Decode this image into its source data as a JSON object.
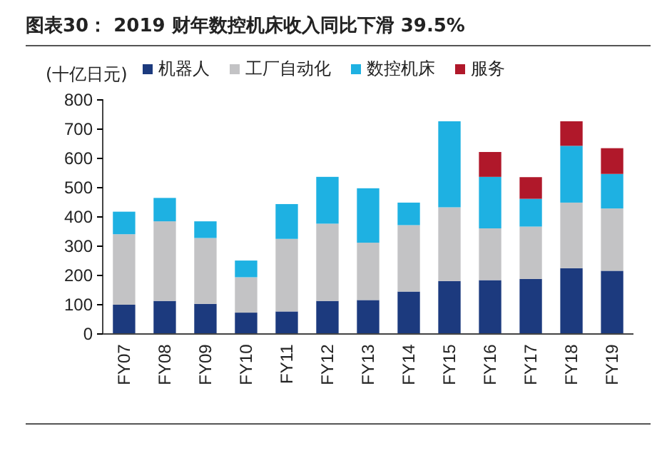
{
  "chart_data": {
    "type": "bar",
    "stacked": true,
    "title": "图表30：  2019 财年数控机床收入同比下滑 39.5%",
    "ylabel": "(十亿日元)",
    "categories": [
      "FY07",
      "FY08",
      "FY09",
      "FY10",
      "FY11",
      "FY12",
      "FY13",
      "FY14",
      "FY15",
      "FY16",
      "FY17",
      "FY18",
      "FY19"
    ],
    "series": [
      {
        "name": "机器人",
        "color": "#1c3a7e",
        "values": [
          100,
          113,
          103,
          73,
          77,
          113,
          116,
          145,
          181,
          184,
          188,
          225,
          216
        ]
      },
      {
        "name": "工厂自动化",
        "color": "#c3c3c5",
        "values": [
          241,
          272,
          225,
          121,
          248,
          264,
          196,
          227,
          252,
          177,
          179,
          224,
          213
        ]
      },
      {
        "name": "数控机床",
        "color": "#1eb1e2",
        "values": [
          77,
          80,
          57,
          57,
          119,
          160,
          186,
          77,
          294,
          176,
          95,
          194,
          118
        ]
      },
      {
        "name": "服务",
        "color": "#b0182a",
        "values": [
          null,
          null,
          null,
          null,
          null,
          null,
          null,
          null,
          null,
          85,
          74,
          84,
          88
        ]
      }
    ],
    "ylim": [
      0,
      800
    ],
    "yticks": [
      0,
      100,
      200,
      300,
      400,
      500,
      600,
      700,
      800
    ],
    "legend": "top",
    "grid": false
  }
}
